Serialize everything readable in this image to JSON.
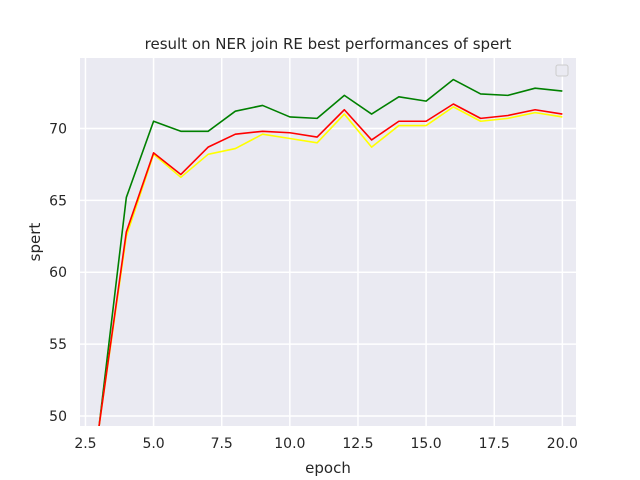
{
  "chart_data": {
    "type": "line",
    "title": "result on NER join RE best performances of spert",
    "xlabel": "epoch",
    "ylabel": "spert",
    "xlim": [
      2.3,
      20.5
    ],
    "ylim": [
      49.3,
      74.9
    ],
    "xticks": [
      "2.5",
      "5.0",
      "7.5",
      "10.0",
      "12.5",
      "15.0",
      "17.5",
      "20.0"
    ],
    "xtick_values": [
      2.5,
      5.0,
      7.5,
      10.0,
      12.5,
      15.0,
      17.5,
      20.0
    ],
    "yticks": [
      "50",
      "55",
      "60",
      "65",
      "70"
    ],
    "ytick_values": [
      50,
      55,
      60,
      65,
      70
    ],
    "grid": true,
    "legend": "top-right",
    "x": [
      3,
      4,
      5,
      6,
      7,
      8,
      9,
      10,
      11,
      12,
      13,
      14,
      15,
      16,
      17,
      18,
      19,
      20
    ],
    "series": [
      {
        "color": "#008000",
        "values": [
          49.3,
          65.2,
          70.5,
          69.8,
          69.8,
          71.2,
          71.6,
          70.8,
          70.7,
          72.3,
          71.0,
          72.2,
          71.9,
          73.4,
          72.4,
          72.3,
          72.8,
          72.6
        ]
      },
      {
        "color": "#ffff00",
        "values": [
          49.3,
          62.5,
          68.2,
          66.6,
          68.2,
          68.6,
          69.6,
          69.3,
          69.0,
          71.0,
          68.7,
          70.2,
          70.2,
          71.5,
          70.5,
          70.7,
          71.1,
          70.8
        ]
      },
      {
        "color": "#ff0000",
        "values": [
          49.3,
          62.8,
          68.3,
          66.8,
          68.7,
          69.6,
          69.8,
          69.7,
          69.4,
          71.3,
          69.2,
          70.5,
          70.5,
          71.7,
          70.7,
          70.9,
          71.3,
          71.0
        ]
      }
    ]
  }
}
